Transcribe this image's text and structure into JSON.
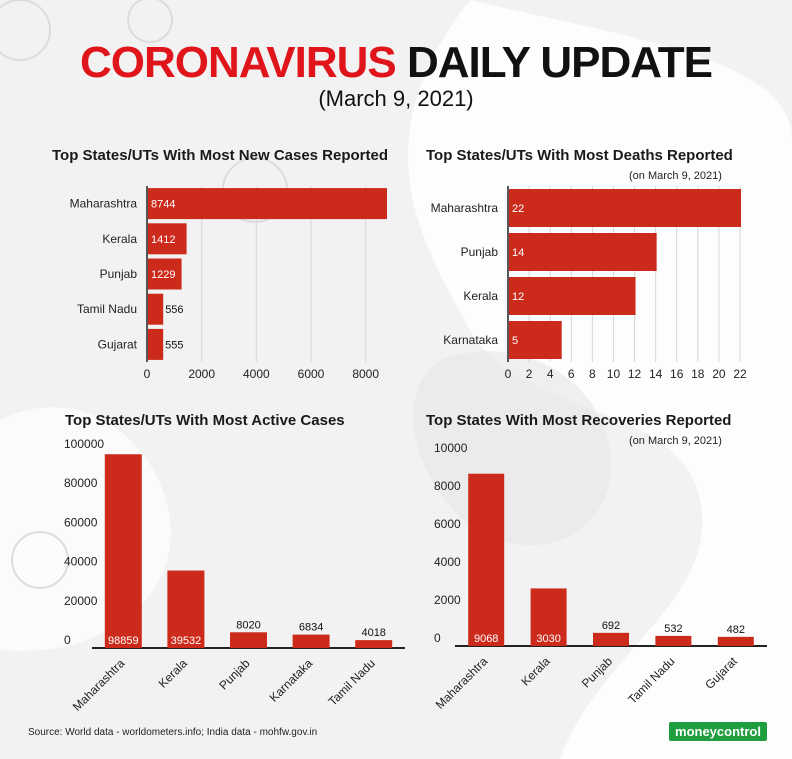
{
  "header": {
    "title_red": "CORONAVIRUS",
    "title_dark": "DAILY UPDATE",
    "date": "(March 9, 2021)"
  },
  "colors": {
    "bar": "#cc2a1b",
    "title_red": "#e0151b",
    "logo_bg": "#1e9e3e"
  },
  "source": "Source: World data - worldometers.info; India data - mohfw.gov.in",
  "logo": "moneycontrol",
  "chart_data": [
    {
      "type": "bar",
      "orientation": "horizontal",
      "title": "Top States/UTs With Most New Cases Reported",
      "note": "",
      "categories": [
        "Maharashtra",
        "Kerala",
        "Punjab",
        "Tamil Nadu",
        "Gujarat"
      ],
      "values": [
        8744,
        1412,
        1229,
        556,
        555
      ],
      "xlim": [
        0,
        9000
      ],
      "ticks": [
        0,
        2000,
        4000,
        6000,
        8000
      ],
      "grid": true
    },
    {
      "type": "bar",
      "orientation": "horizontal",
      "title": "Top States/UTs With Most Deaths Reported",
      "note": "(on March 9, 2021)",
      "categories": [
        "Maharashtra",
        "Punjab",
        "Kerala",
        "Karnataka"
      ],
      "values": [
        22,
        14,
        12,
        5
      ],
      "xlim": [
        0,
        22
      ],
      "ticks": [
        0,
        2,
        4,
        6,
        8,
        10,
        12,
        14,
        16,
        18,
        20,
        22
      ],
      "grid": true
    },
    {
      "type": "bar",
      "orientation": "vertical",
      "title": "Top States/UTs With Most Active Cases",
      "note": "",
      "categories": [
        "Maharashtra",
        "Kerala",
        "Punjab",
        "Karnataka",
        "Tamil Nadu"
      ],
      "values": [
        98859,
        39532,
        8020,
        6834,
        4018
      ],
      "ylim": [
        0,
        100000
      ],
      "ticks": [
        0,
        20000,
        40000,
        60000,
        80000,
        100000
      ],
      "grid": false
    },
    {
      "type": "bar",
      "orientation": "vertical",
      "title": "Top States With Most Recoveries Reported",
      "note": "(on March 9, 2021)",
      "categories": [
        "Maharashtra",
        "Kerala",
        "Punjab",
        "Tamil Nadu",
        "Gujarat"
      ],
      "values": [
        9068,
        3030,
        692,
        532,
        482
      ],
      "ylim": [
        0,
        10000
      ],
      "ticks": [
        0,
        2000,
        4000,
        6000,
        8000,
        10000
      ],
      "grid": false
    }
  ]
}
